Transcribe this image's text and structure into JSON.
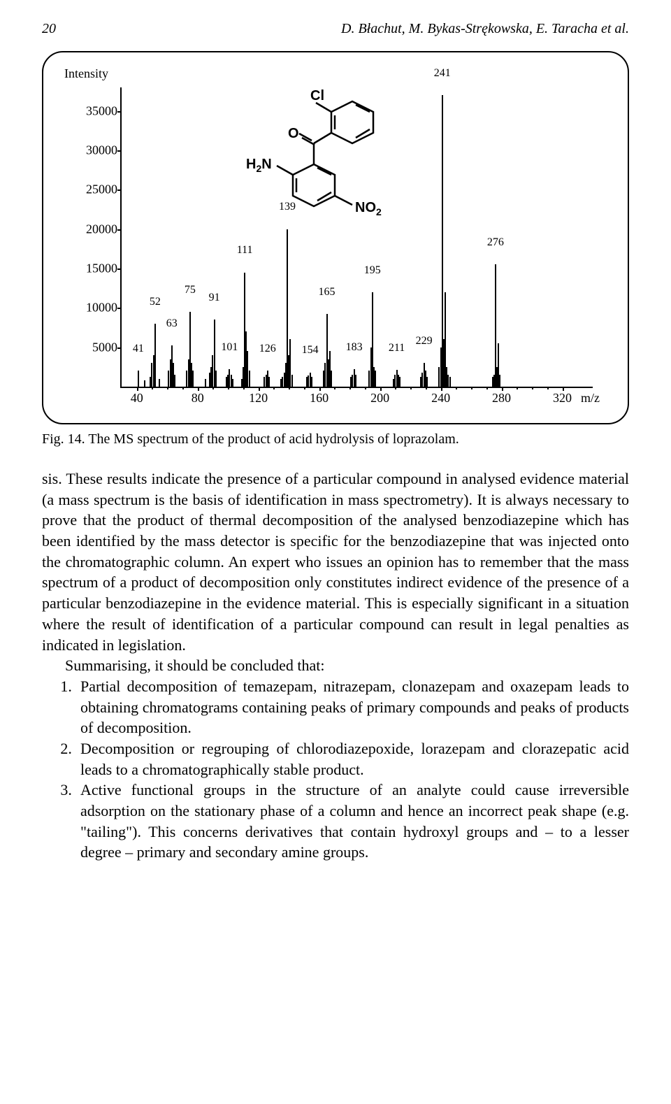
{
  "header": {
    "page_number": "20",
    "running_head": "D. Błachut, M. Bykas-Strękowska, E. Taracha et al."
  },
  "figure": {
    "intensity_label": "Intensity",
    "x_unit": "m/z",
    "y_ticks": [
      5000,
      10000,
      15000,
      20000,
      25000,
      30000,
      35000
    ],
    "y_max": 38000,
    "x_ticks": [
      40,
      80,
      120,
      160,
      200,
      240,
      280,
      320
    ],
    "x_min": 30,
    "x_max": 340,
    "molecule_labels": {
      "cl": "Cl",
      "o": "O",
      "h2n": "H₂N",
      "no2": "NO₂"
    },
    "labeled_peaks": [
      {
        "mz": 41,
        "intensity": 2000,
        "label": "41",
        "dy": 0
      },
      {
        "mz": 52,
        "intensity": 8000,
        "label": "52",
        "dy": 0
      },
      {
        "mz": 63,
        "intensity": 5200,
        "label": "63",
        "dy": 0
      },
      {
        "mz": 75,
        "intensity": 9500,
        "label": "75",
        "dy": 0
      },
      {
        "mz": 91,
        "intensity": 8500,
        "label": "91",
        "dy": 0
      },
      {
        "mz": 101,
        "intensity": 2200,
        "label": "101",
        "dy": 0
      },
      {
        "mz": 111,
        "intensity": 14500,
        "label": "111",
        "dy": 0
      },
      {
        "mz": 126,
        "intensity": 2000,
        "label": "126",
        "dy": 0
      },
      {
        "mz": 139,
        "intensity": 20000,
        "label": "139",
        "dy": 0
      },
      {
        "mz": 154,
        "intensity": 1800,
        "label": "154",
        "dy": 0
      },
      {
        "mz": 165,
        "intensity": 9200,
        "label": "165",
        "dy": 0
      },
      {
        "mz": 183,
        "intensity": 2200,
        "label": "183",
        "dy": 0
      },
      {
        "mz": 195,
        "intensity": 12000,
        "label": "195",
        "dy": 0
      },
      {
        "mz": 211,
        "intensity": 2100,
        "label": "211",
        "dy": 0
      },
      {
        "mz": 229,
        "intensity": 3000,
        "label": "229",
        "dy": 0
      },
      {
        "mz": 241,
        "intensity": 37000,
        "label": "241",
        "dy": 0
      },
      {
        "mz": 276,
        "intensity": 15500,
        "label": "276",
        "dy": 0
      }
    ],
    "noise_peaks": [
      {
        "mz": 45,
        "intensity": 800
      },
      {
        "mz": 49,
        "intensity": 1200
      },
      {
        "mz": 50,
        "intensity": 3000
      },
      {
        "mz": 51,
        "intensity": 4000
      },
      {
        "mz": 55,
        "intensity": 1000
      },
      {
        "mz": 61,
        "intensity": 2000
      },
      {
        "mz": 62,
        "intensity": 3500
      },
      {
        "mz": 64,
        "intensity": 3000
      },
      {
        "mz": 65,
        "intensity": 1500
      },
      {
        "mz": 73,
        "intensity": 2000
      },
      {
        "mz": 74,
        "intensity": 3500
      },
      {
        "mz": 76,
        "intensity": 3000
      },
      {
        "mz": 77,
        "intensity": 2000
      },
      {
        "mz": 85,
        "intensity": 1000
      },
      {
        "mz": 88,
        "intensity": 1800
      },
      {
        "mz": 89,
        "intensity": 2500
      },
      {
        "mz": 90,
        "intensity": 4000
      },
      {
        "mz": 92,
        "intensity": 2000
      },
      {
        "mz": 99,
        "intensity": 1200
      },
      {
        "mz": 100,
        "intensity": 1500
      },
      {
        "mz": 102,
        "intensity": 1500
      },
      {
        "mz": 103,
        "intensity": 1000
      },
      {
        "mz": 109,
        "intensity": 1000
      },
      {
        "mz": 110,
        "intensity": 2500
      },
      {
        "mz": 112,
        "intensity": 7000
      },
      {
        "mz": 113,
        "intensity": 4500
      },
      {
        "mz": 114,
        "intensity": 2000
      },
      {
        "mz": 124,
        "intensity": 1200
      },
      {
        "mz": 125,
        "intensity": 1500
      },
      {
        "mz": 127,
        "intensity": 1200
      },
      {
        "mz": 135,
        "intensity": 1000
      },
      {
        "mz": 136,
        "intensity": 1200
      },
      {
        "mz": 137,
        "intensity": 1800
      },
      {
        "mz": 138,
        "intensity": 3000
      },
      {
        "mz": 140,
        "intensity": 4000
      },
      {
        "mz": 141,
        "intensity": 6000
      },
      {
        "mz": 142,
        "intensity": 1500
      },
      {
        "mz": 152,
        "intensity": 1200
      },
      {
        "mz": 153,
        "intensity": 1400
      },
      {
        "mz": 155,
        "intensity": 1200
      },
      {
        "mz": 163,
        "intensity": 2000
      },
      {
        "mz": 164,
        "intensity": 3000
      },
      {
        "mz": 166,
        "intensity": 3500
      },
      {
        "mz": 167,
        "intensity": 4500
      },
      {
        "mz": 168,
        "intensity": 2000
      },
      {
        "mz": 181,
        "intensity": 1200
      },
      {
        "mz": 182,
        "intensity": 1500
      },
      {
        "mz": 184,
        "intensity": 1500
      },
      {
        "mz": 193,
        "intensity": 2000
      },
      {
        "mz": 194,
        "intensity": 5000
      },
      {
        "mz": 196,
        "intensity": 2500
      },
      {
        "mz": 197,
        "intensity": 2000
      },
      {
        "mz": 209,
        "intensity": 1000
      },
      {
        "mz": 210,
        "intensity": 1500
      },
      {
        "mz": 212,
        "intensity": 1500
      },
      {
        "mz": 213,
        "intensity": 1200
      },
      {
        "mz": 227,
        "intensity": 1200
      },
      {
        "mz": 228,
        "intensity": 1800
      },
      {
        "mz": 230,
        "intensity": 2000
      },
      {
        "mz": 231,
        "intensity": 1200
      },
      {
        "mz": 239,
        "intensity": 2500
      },
      {
        "mz": 240,
        "intensity": 5000
      },
      {
        "mz": 242,
        "intensity": 6000
      },
      {
        "mz": 243,
        "intensity": 12000
      },
      {
        "mz": 244,
        "intensity": 2500
      },
      {
        "mz": 245,
        "intensity": 1500
      },
      {
        "mz": 246,
        "intensity": 1200
      },
      {
        "mz": 274,
        "intensity": 1200
      },
      {
        "mz": 275,
        "intensity": 1500
      },
      {
        "mz": 277,
        "intensity": 2500
      },
      {
        "mz": 278,
        "intensity": 5500
      },
      {
        "mz": 279,
        "intensity": 1500
      }
    ]
  },
  "caption": "Fig. 14. The MS spectrum of the product of acid hydrolysis of loprazolam.",
  "paragraphs": {
    "p1": "sis. These results indicate the presence of a particular compound in analysed evidence material (a mass spectrum is the basis of identification in mass spectrometry). It is always necessary to prove that the product of thermal decomposition of the analysed benzodiazepine which has been identified by the mass detector is specific for the benzodiazepine that was injected onto the chromatographic column. An expert who issues an opinion has to remember that the mass spectrum of a product of decomposition only constitutes indirect evidence of the presence of a particular benzodiazepine in the evidence material. This is especially significant in a situation where the result of identification of a particular compound can result in legal penalties as indicated in legislation.",
    "p2": "Summarising, it should be concluded that:"
  },
  "list": {
    "item1": "Partial decomposition of temazepam, nitrazepam, clonazepam and oxazepam leads to obtaining chromatograms containing peaks of primary compounds and peaks of products of decomposition.",
    "item2": "Decomposition or regrouping of chlorodiazepoxide, lorazepam and clorazepatic acid leads to a chromatographically stable product.",
    "item3": "Active functional groups in the structure of an analyte could cause irreversible adsorption on the stationary phase of a column and hence an incorrect peak shape (e.g. \"tailing\"). This concerns derivatives that contain hydroxyl groups and – to a lesser degree – primary and secondary amine groups."
  }
}
